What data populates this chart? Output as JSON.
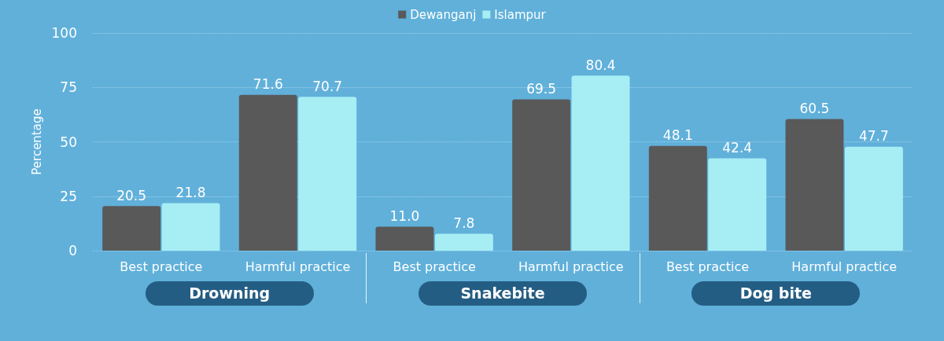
{
  "chart_data": {
    "type": "bar",
    "ylabel": "Percentage",
    "categories": [
      "Best practice",
      "Harmful practice",
      "Best practice",
      "Harmful practice",
      "Best practice",
      "Harmful practice"
    ],
    "series": [
      {
        "name": "Dewanganj",
        "color": "#595959",
        "values": [
          20.5,
          71.6,
          11.0,
          69.5,
          48.1,
          60.5
        ],
        "value_labels": [
          "20.5",
          "71.6",
          "11.0",
          "69.5",
          "48.1",
          "60.5"
        ]
      },
      {
        "name": "Islampur",
        "color": "#a6eef4",
        "values": [
          21.8,
          70.7,
          7.8,
          80.4,
          42.4,
          47.7
        ],
        "value_labels": [
          "21.8",
          "70.7",
          "7.8",
          "80.4",
          "42.4",
          "47.7"
        ]
      }
    ],
    "ylim": [
      0,
      100
    ],
    "yticks": [
      0,
      25,
      50,
      75,
      100
    ],
    "grid": "y",
    "legend": "top",
    "annotations": [
      "Drowning",
      "Snakebite",
      "Dog bite"
    ]
  }
}
